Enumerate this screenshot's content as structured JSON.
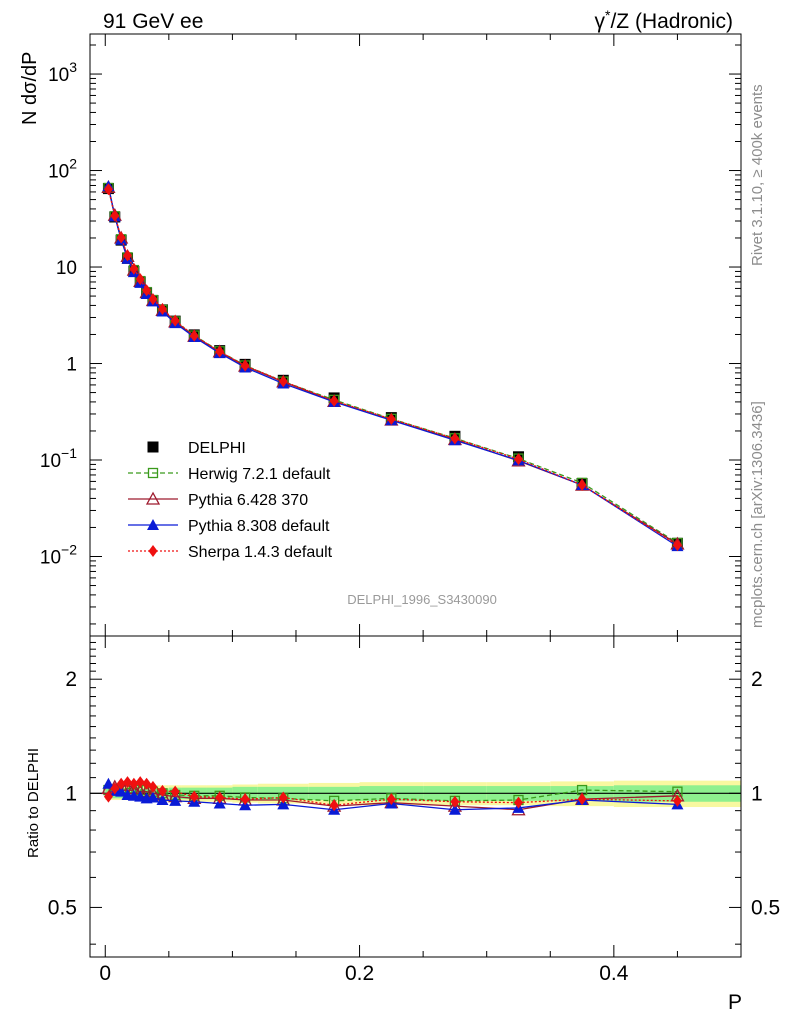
{
  "header": {
    "left": "91 GeV ee",
    "right_gamma": "γ",
    "right_star": "*",
    "right_rest": "/Z (Hadronic)"
  },
  "side_labels": {
    "rivet": "Rivet 3.1.10, ≥ 400k events",
    "mcplots": "mcplots.cern.ch [arXiv:1306.3436]"
  },
  "watermark": "DELPHI_1996_S3430090",
  "axes": {
    "ylabel_top": "N dσ/dP",
    "ylabel_bottom": "Ratio to DELPHI",
    "xlabel": "P",
    "x_ticks": [
      "0",
      "0.2",
      "0.4"
    ],
    "y_ticks_top": [
      {
        "v": 0.01,
        "base": "10",
        "exp": "−2"
      },
      {
        "v": 0.1,
        "base": "10",
        "exp": "−1"
      },
      {
        "v": 1,
        "base": "1",
        "exp": ""
      },
      {
        "v": 10,
        "base": "10",
        "exp": ""
      },
      {
        "v": 100,
        "base": "10",
        "exp": "2"
      },
      {
        "v": 1000,
        "base": "10",
        "exp": "3"
      }
    ],
    "y_ticks_bottom": [
      "0.5",
      "1",
      "2"
    ]
  },
  "legend": [
    {
      "label": "DELPHI",
      "color": "#000000",
      "marker": "square-filled",
      "line": "none"
    },
    {
      "label": "Herwig 7.2.1 default",
      "color": "#3a9a1c",
      "marker": "square-open",
      "line": "dashed"
    },
    {
      "label": "Pythia 6.428 370",
      "color": "#9e1a2e",
      "marker": "triangle-open",
      "line": "solid"
    },
    {
      "label": "Pythia 8.308 default",
      "color": "#0a1bd6",
      "marker": "triangle-filled",
      "line": "solid"
    },
    {
      "label": "Sherpa 1.4.3 default",
      "color": "#ef1010",
      "marker": "diamond-filled",
      "line": "dotted"
    }
  ],
  "colors": {
    "band_inner": "#8ef08e",
    "band_outer": "#f8f8a0"
  },
  "chart_data": [
    {
      "type": "line",
      "title": "γ*/Z (Hadronic)",
      "xlabel": "P",
      "ylabel": "N dσ/dP",
      "yscale": "log",
      "xlim": [
        -0.012,
        0.5
      ],
      "ylim": [
        0.0015,
        2600
      ],
      "x": [
        0.0025,
        0.0075,
        0.0125,
        0.0175,
        0.0225,
        0.0275,
        0.0325,
        0.0375,
        0.045,
        0.055,
        0.07,
        0.09,
        0.11,
        0.14,
        0.18,
        0.225,
        0.275,
        0.325,
        0.375,
        0.45
      ],
      "series": [
        {
          "name": "DELPHI",
          "values": [
            65,
            33,
            19,
            12.3,
            9.0,
            7.0,
            5.4,
            4.5,
            3.6,
            2.75,
            1.98,
            1.36,
            0.98,
            0.67,
            0.44,
            0.275,
            0.176,
            0.108,
            0.057,
            0.0137
          ]
        },
        {
          "name": "Herwig 7.2.1 default",
          "values": [
            66,
            33.6,
            19.4,
            12.6,
            9.3,
            7.15,
            5.5,
            4.55,
            3.6,
            2.73,
            1.95,
            1.34,
            0.955,
            0.65,
            0.42,
            0.267,
            0.168,
            0.1035,
            0.058,
            0.0138
          ]
        },
        {
          "name": "Pythia 6.428 370",
          "values": [
            67,
            34.4,
            20.0,
            12.9,
            9.3,
            7.1,
            5.45,
            4.5,
            3.56,
            2.7,
            1.92,
            1.32,
            0.94,
            0.645,
            0.405,
            0.26,
            0.163,
            0.098,
            0.055,
            0.0135
          ]
        },
        {
          "name": "Pythia 8.308 default",
          "values": [
            69,
            33.5,
            19.2,
            12.2,
            8.85,
            6.85,
            5.25,
            4.4,
            3.46,
            2.62,
            1.88,
            1.28,
            0.91,
            0.62,
            0.4,
            0.258,
            0.16,
            0.099,
            0.055,
            0.0128
          ]
        },
        {
          "name": "Sherpa 1.4.3 default",
          "values": [
            64,
            34.0,
            20.2,
            13.2,
            9.6,
            7.5,
            5.75,
            4.65,
            3.67,
            2.78,
            1.94,
            1.33,
            0.95,
            0.655,
            0.41,
            0.266,
            0.167,
            0.102,
            0.055,
            0.0131
          ]
        }
      ]
    },
    {
      "type": "line",
      "ylabel": "Ratio to DELPHI",
      "xlabel": "P",
      "yscale": "log",
      "xlim": [
        -0.012,
        0.5
      ],
      "ylim": [
        0.37,
        2.6
      ],
      "reference": 1,
      "x": [
        0.0025,
        0.0075,
        0.0125,
        0.0175,
        0.0225,
        0.0275,
        0.0325,
        0.0375,
        0.045,
        0.055,
        0.07,
        0.09,
        0.11,
        0.14,
        0.18,
        0.225,
        0.275,
        0.325,
        0.375,
        0.45
      ],
      "bin_edges": [
        0,
        0.005,
        0.01,
        0.015,
        0.02,
        0.025,
        0.03,
        0.035,
        0.04,
        0.05,
        0.06,
        0.08,
        0.1,
        0.12,
        0.16,
        0.2,
        0.25,
        0.3,
        0.35,
        0.4,
        0.5
      ],
      "band_inner": [
        0.03,
        0.03,
        0.03,
        0.03,
        0.03,
        0.03,
        0.03,
        0.03,
        0.03,
        0.035,
        0.035,
        0.035,
        0.04,
        0.04,
        0.04,
        0.045,
        0.045,
        0.045,
        0.045,
        0.05
      ],
      "band_outer": [
        0.04,
        0.04,
        0.04,
        0.04,
        0.04,
        0.04,
        0.045,
        0.045,
        0.05,
        0.05,
        0.05,
        0.05,
        0.055,
        0.06,
        0.065,
        0.07,
        0.07,
        0.07,
        0.075,
        0.08
      ],
      "series": [
        {
          "name": "Herwig 7.2.1 default",
          "values": [
            1.02,
            1.02,
            1.02,
            1.03,
            1.03,
            1.02,
            1.02,
            1.01,
            1.0,
            0.99,
            0.985,
            0.985,
            0.975,
            0.97,
            0.955,
            0.97,
            0.955,
            0.96,
            1.02,
            1.01
          ]
        },
        {
          "name": "Pythia 6.428 370",
          "values": [
            1.03,
            1.04,
            1.05,
            1.05,
            1.03,
            1.01,
            1.01,
            1.0,
            0.99,
            0.98,
            0.97,
            0.97,
            0.96,
            0.96,
            0.925,
            0.945,
            0.925,
            0.905,
            0.965,
            0.985
          ]
        },
        {
          "name": "Pythia 8.308 default",
          "values": [
            1.06,
            1.015,
            1.01,
            0.99,
            0.985,
            0.98,
            0.97,
            0.975,
            0.96,
            0.955,
            0.95,
            0.94,
            0.93,
            0.935,
            0.905,
            0.94,
            0.905,
            0.915,
            0.96,
            0.935
          ]
        },
        {
          "name": "Sherpa 1.4.3 default",
          "values": [
            0.98,
            1.03,
            1.06,
            1.07,
            1.06,
            1.07,
            1.06,
            1.04,
            1.015,
            1.01,
            0.98,
            0.975,
            0.965,
            0.975,
            0.93,
            0.965,
            0.95,
            0.945,
            0.965,
            0.955
          ]
        }
      ]
    }
  ]
}
